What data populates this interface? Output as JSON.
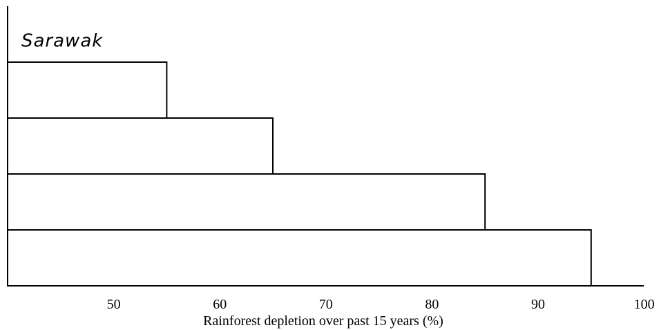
{
  "chart_data": {
    "type": "bar",
    "orientation": "horizontal",
    "categories": [
      "Sarawak",
      "",
      "",
      "",
      ""
    ],
    "values": [
      40,
      55,
      65,
      85,
      95
    ],
    "xlabel": "Rainforest depletion over past 15 years (%)",
    "xlim": [
      40,
      100
    ],
    "xticks": [
      50,
      60,
      70,
      80,
      90,
      100
    ],
    "grid": false,
    "legend": "none"
  }
}
